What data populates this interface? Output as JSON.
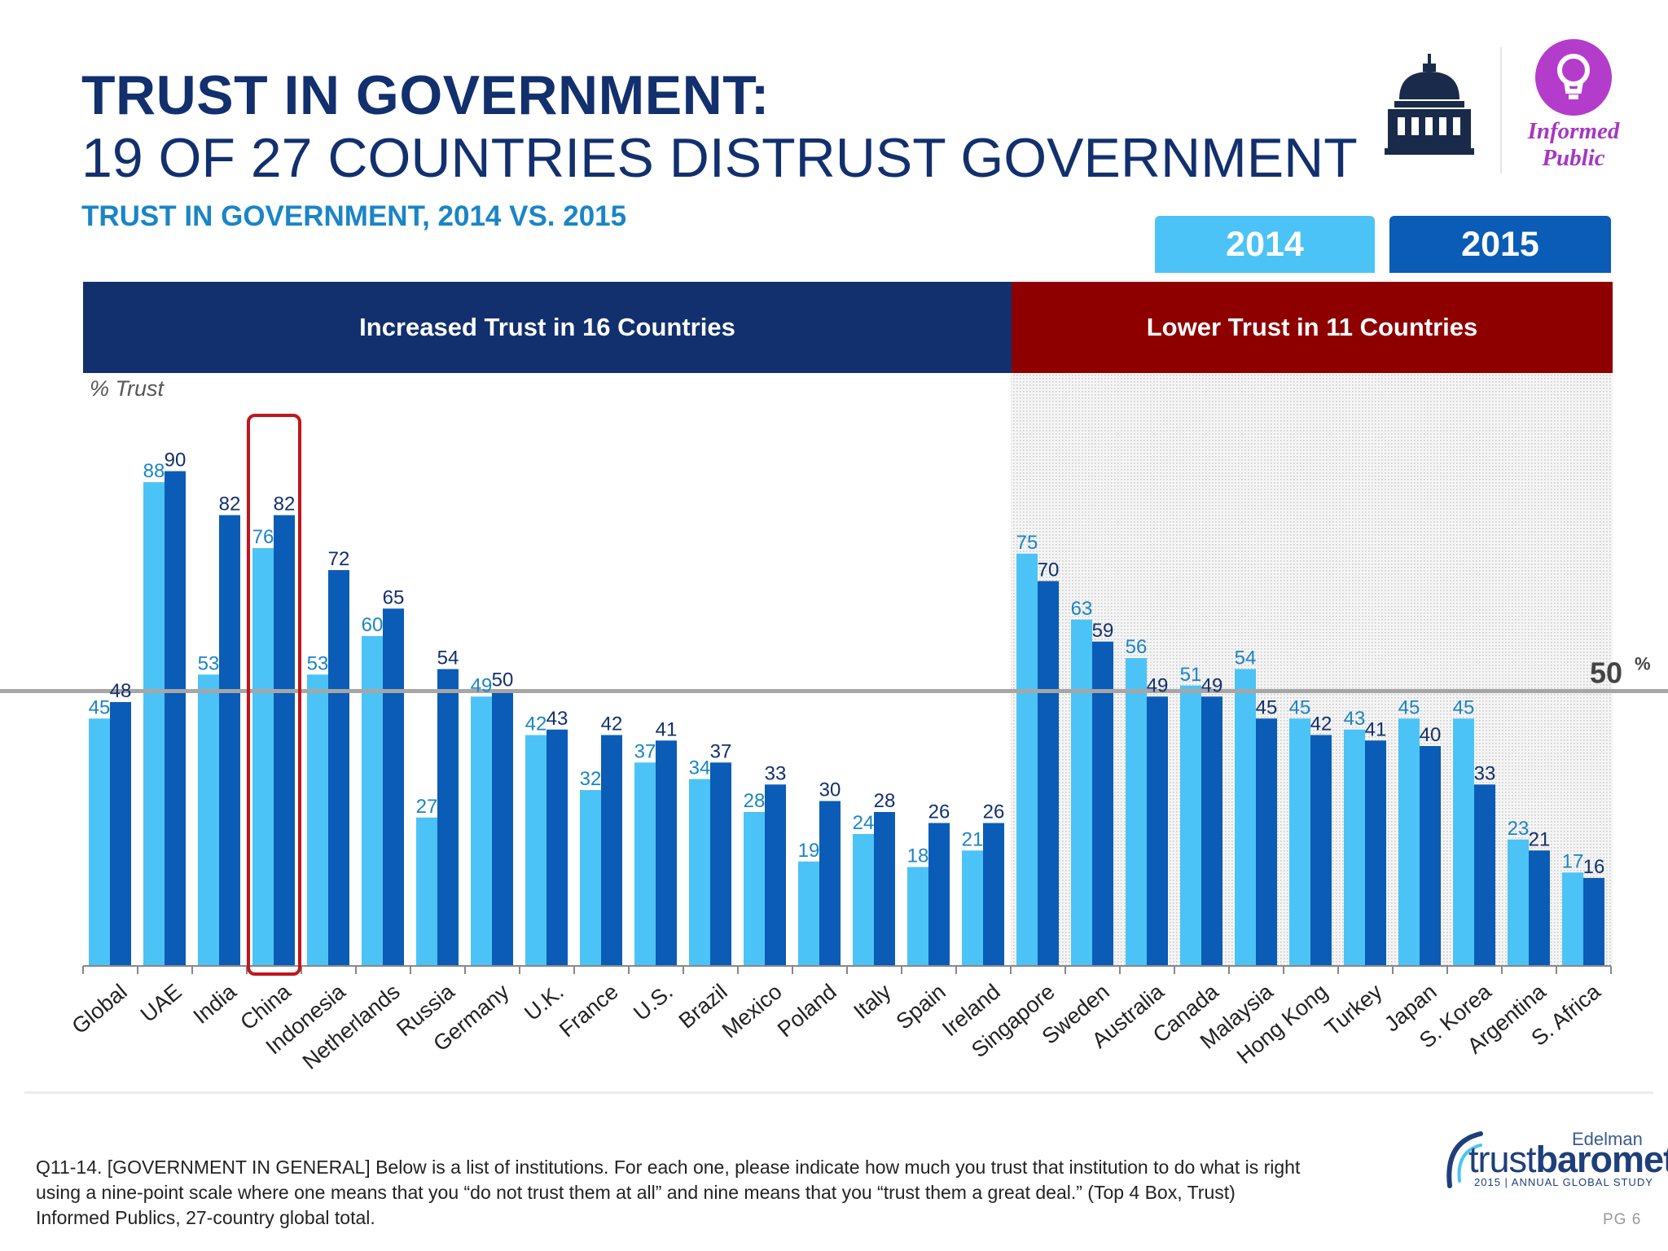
{
  "header": {
    "title_line1": "TRUST IN GOVERNMENT:",
    "title_line2": "19 OF 27 COUNTRIES DISTRUST GOVERNMENT",
    "subtitle": "TRUST IN GOVERNMENT, 2014 VS. 2015"
  },
  "logos": {
    "capitol_icon": "capitol-dome-icon",
    "bulb_icon": "lightbulb-icon",
    "informed_line1": "Informed",
    "informed_line2": "Public"
  },
  "legend": {
    "label_2014": "2014",
    "label_2015": "2015"
  },
  "bands": {
    "increased": "Increased Trust in 16 Countries",
    "lower": "Lower Trust in 11 Countries"
  },
  "colors": {
    "series_2014": "#4cc3f6",
    "series_2015": "#0a5cb6",
    "label_2014": "#1a85c6",
    "label_2015": "#12306d",
    "increased_band": "#12306d",
    "lower_band": "#8e0000",
    "highlight": "#c0161c",
    "reference_line": "#a6a6a6"
  },
  "chart_data": {
    "type": "bar",
    "ylabel": "% Trust",
    "ylim": [
      0,
      100
    ],
    "categories": [
      "Global",
      "UAE",
      "India",
      "China",
      "Indonesia",
      "Netherlands",
      "Russia",
      "Germany",
      "U.K.",
      "France",
      "U.S.",
      "Brazil",
      "Mexico",
      "Poland",
      "Italy",
      "Spain",
      "Ireland",
      "Singapore",
      "Sweden",
      "Australia",
      "Canada",
      "Malaysia",
      "Hong Kong",
      "Turkey",
      "Japan",
      "S. Korea",
      "Argentina",
      "S. Africa"
    ],
    "series": [
      {
        "name": "2014",
        "values": [
          45,
          88,
          53,
          76,
          53,
          60,
          27,
          49,
          42,
          32,
          37,
          34,
          28,
          19,
          24,
          18,
          21,
          75,
          63,
          56,
          51,
          54,
          45,
          43,
          45,
          45,
          23,
          17
        ]
      },
      {
        "name": "2015",
        "values": [
          48,
          90,
          82,
          82,
          72,
          65,
          54,
          50,
          43,
          42,
          41,
          37,
          33,
          30,
          28,
          26,
          26,
          70,
          59,
          49,
          49,
          45,
          42,
          41,
          40,
          33,
          21,
          16
        ]
      }
    ],
    "reference_line": {
      "value": 50,
      "label": "50",
      "suffix": "%"
    },
    "highlighted_category": "China",
    "increased_group_count": 17,
    "grid": false
  },
  "footnote": "Q11-14. [GOVERNMENT IN GENERAL] Below is a list of institutions. For each one, please indicate how much you trust that institution to do what is right using a nine-point scale where one means that you “do not trust them at all” and nine means that you “trust them a great deal.” (Top 4 Box, Trust) Informed Publics, 27-country global total.",
  "branding": {
    "edelman": "Edelman",
    "trust": "trust",
    "barometer": "barometer",
    "tagline": "2015 | ANNUAL GLOBAL STUDY",
    "page": "PG 6"
  }
}
